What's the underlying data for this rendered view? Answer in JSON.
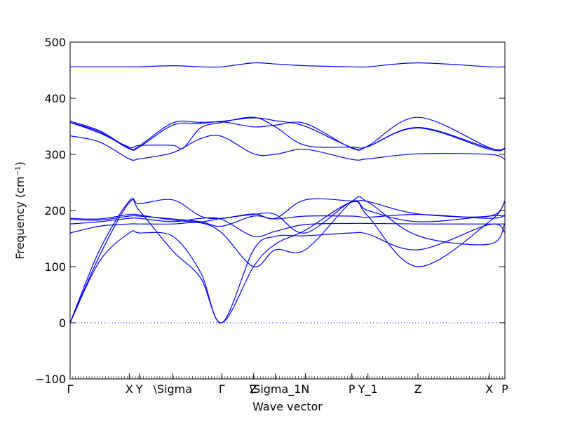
{
  "chart_data": {
    "type": "line",
    "xlabel": "Wave vector",
    "ylabel": "Frequency (cm⁻¹)",
    "ylim": [
      -100,
      500
    ],
    "yticks": [
      -100,
      0,
      100,
      200,
      300,
      400,
      500
    ],
    "grid": false,
    "line_color": "#0000ff",
    "zero_line": {
      "y": 0,
      "style": "dotted",
      "color": "#0000ff"
    },
    "x_ticks": [
      {
        "label": "Γ",
        "x": 0.0
      },
      {
        "label": "X",
        "x": 1.36
      },
      {
        "label": "Y",
        "x": 1.59
      },
      {
        "label": "\\Sigma",
        "x": 2.36
      },
      {
        "label": "Γ",
        "x": 3.49
      },
      {
        "label": "Z",
        "x": 4.22
      },
      {
        "label": "\\Sigma_1",
        "x": 4.72
      },
      {
        "label": "N",
        "x": 5.41
      },
      {
        "label": "P",
        "x": 6.48
      },
      {
        "label": "Y_1",
        "x": 6.85
      },
      {
        "label": "Z",
        "x": 8.0
      },
      {
        "label": "X",
        "x": 9.64
      },
      {
        "label": "P",
        "x": 10.0
      }
    ],
    "xlim": [
      0,
      10
    ],
    "series": [
      {
        "x": [
          0.0,
          0.68,
          1.36,
          1.59,
          2.36,
          3.0,
          3.49,
          4.22,
          4.72,
          5.41,
          6.48,
          6.85,
          8.0,
          9.64,
          10.0
        ],
        "values": [
          456,
          456,
          456,
          456,
          458,
          456,
          456,
          463,
          461,
          458,
          456,
          456,
          463,
          456,
          456
        ]
      },
      {
        "x": [
          0.0,
          0.68,
          1.36,
          1.59,
          2.36,
          3.0,
          3.49,
          4.22,
          4.72,
          5.41,
          6.48,
          6.85,
          8.0,
          9.64,
          10.0
        ],
        "values": [
          359,
          342,
          311,
          315,
          356,
          357,
          359,
          365,
          360,
          350,
          312,
          315,
          366,
          312,
          311
        ]
      },
      {
        "x": [
          0.0,
          0.68,
          1.36,
          1.59,
          2.36,
          3.0,
          3.49,
          4.22,
          4.72,
          5.41,
          6.48,
          6.85,
          8.0,
          9.64,
          10.0
        ],
        "values": [
          357,
          340,
          310,
          313,
          352,
          355,
          358,
          349,
          352,
          355,
          311,
          314,
          348,
          311,
          310
        ]
      },
      {
        "x": [
          0.0,
          0.68,
          1.36,
          1.59,
          2.36,
          2.6,
          3.0,
          3.49,
          4.22,
          4.72,
          5.41,
          6.48,
          6.85,
          8.0,
          9.64,
          10.0
        ],
        "values": [
          357,
          338,
          313,
          316,
          316,
          311,
          347,
          357,
          366,
          349,
          316,
          313,
          314,
          347,
          309,
          310
        ]
      },
      {
        "x": [
          0.0,
          0.68,
          1.36,
          1.59,
          2.36,
          3.0,
          3.49,
          4.22,
          4.72,
          5.41,
          6.48,
          6.85,
          8.0,
          9.64,
          10.0
        ],
        "values": [
          333,
          322,
          292,
          292,
          303,
          328,
          332,
          301,
          300,
          309,
          291,
          292,
          301,
          300,
          291
        ]
      },
      {
        "x": [
          0.0,
          0.68,
          1.36,
          1.59,
          2.36,
          3.0,
          3.49,
          4.22,
          4.72,
          5.41,
          6.48,
          6.85,
          8.0,
          9.64,
          10.0
        ],
        "values": [
          0,
          130,
          217,
          212,
          219,
          190,
          186,
          194,
          186,
          219,
          217,
          216,
          194,
          190,
          217
        ]
      },
      {
        "x": [
          0.0,
          0.68,
          1.36,
          1.59,
          2.36,
          3.0,
          3.49,
          4.22,
          4.72,
          5.41,
          6.48,
          6.85,
          8.0,
          9.64,
          10.0
        ],
        "values": [
          0,
          120,
          214,
          200,
          128,
          80,
          0,
          100,
          140,
          165,
          215,
          190,
          100,
          180,
          216
        ]
      },
      {
        "x": [
          0.0,
          0.68,
          1.36,
          1.59,
          2.36,
          3.0,
          3.49,
          4.22,
          4.72,
          5.41,
          6.48,
          6.85,
          8.0,
          9.64,
          10.0
        ],
        "values": [
          0,
          110,
          160,
          160,
          154,
          90,
          0,
          130,
          154,
          155,
          160,
          158,
          130,
          175,
          161
        ]
      },
      {
        "x": [
          0.0,
          0.68,
          1.36,
          1.59,
          2.36,
          3.0,
          3.49,
          4.22,
          4.72,
          5.41,
          6.48,
          6.85,
          8.0,
          9.64,
          10.0
        ],
        "values": [
          160,
          172,
          176,
          176,
          176,
          178,
          160,
          100,
          130,
          130,
          216,
          215,
          155,
          140,
          177
        ]
      },
      {
        "x": [
          0.0,
          0.68,
          1.36,
          1.59,
          2.36,
          3.0,
          3.49,
          4.22,
          4.72,
          5.41,
          6.48,
          6.85,
          8.0,
          9.64,
          10.0
        ],
        "values": [
          176,
          180,
          186,
          186,
          180,
          186,
          184,
          154,
          163,
          175,
          177,
          177,
          176,
          176,
          176
        ]
      },
      {
        "x": [
          0.0,
          0.68,
          1.36,
          1.59,
          2.36,
          3.0,
          3.49,
          4.22,
          4.72,
          5.41,
          6.48,
          6.85,
          8.0,
          9.64,
          10.0
        ],
        "values": [
          184,
          183,
          190,
          190,
          185,
          180,
          172,
          190,
          185,
          190,
          190,
          188,
          193,
          186,
          192
        ]
      },
      {
        "x": [
          0.0,
          0.68,
          1.36,
          1.59,
          2.36,
          3.0,
          3.49,
          4.22,
          4.72,
          5.41,
          6.48,
          6.85,
          8.0,
          9.64,
          10.0
        ],
        "values": [
          186,
          185,
          193,
          192,
          183,
          180,
          186,
          193,
          193,
          160,
          216,
          200,
          180,
          190,
          190
        ]
      }
    ]
  }
}
